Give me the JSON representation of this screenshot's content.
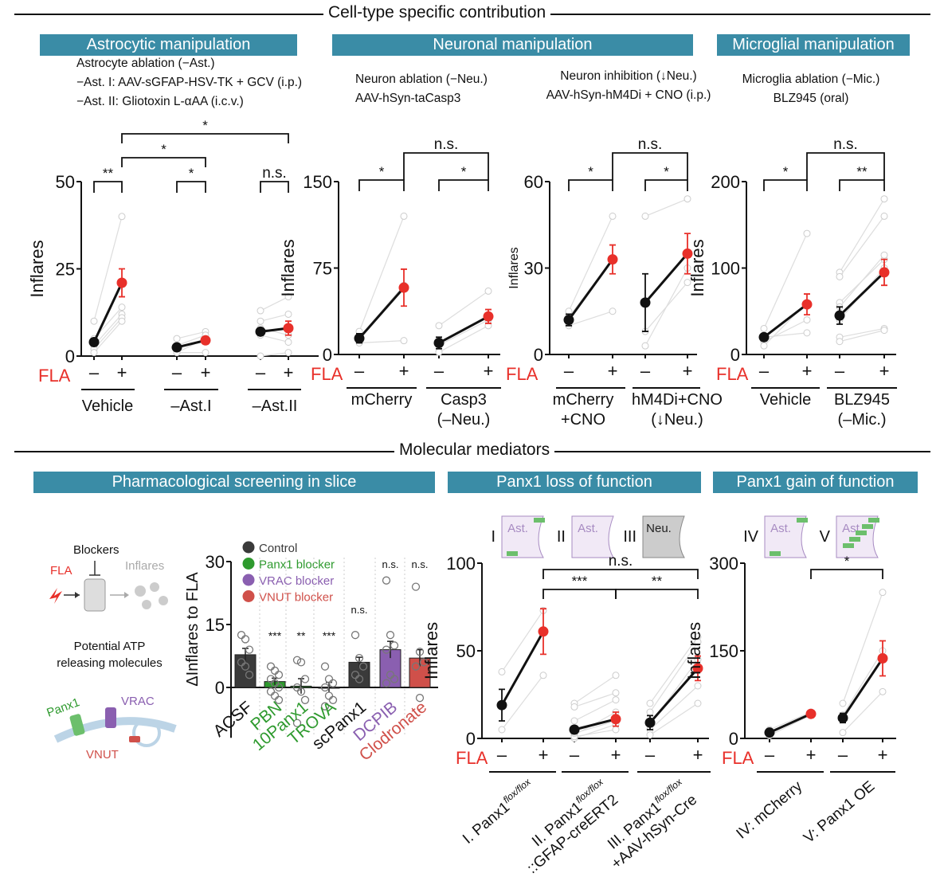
{
  "sections": {
    "top": "Cell-type specific contribution",
    "bottom": "Molecular mediators"
  },
  "boxes": {
    "astro": "Astrocytic manipulation",
    "neuro": "Neuronal manipulation",
    "micro": "Microglial manipulation",
    "pharm": "Pharmacological screening in slice",
    "lof": "Panx1 loss of function",
    "gof": "Panx1 gain of function"
  },
  "descriptions": {
    "astro": [
      "Astrocyte ablation (−Ast.)",
      "−Ast. I: AAV-sGFAP-HSV-TK + GCV (i.p.)",
      "−Ast. II: Gliotoxin L-αAA (i.c.v.)"
    ],
    "neu_abl": [
      "Neuron ablation (−Neu.)",
      "AAV-hSyn-taCasp3"
    ],
    "neu_inh": [
      "Neuron inhibition (↓Neu.)",
      "AAV-hSyn-hM4Di + CNO (i.p.)"
    ],
    "mic_abl": [
      "Microglia ablation (−Mic.)",
      "BLZ945 (oral)"
    ]
  },
  "fla_label": "FLA",
  "minus": "–",
  "plus": "+",
  "schematic": {
    "blockers": "Blockers",
    "fla": "FLA",
    "inflares": "Inflares",
    "potential": [
      "Potential ATP",
      "releasing molecules"
    ],
    "panx1": "Panx1",
    "vrac": "VRAC",
    "vnut": "VNUT",
    "insets": [
      {
        "num": "I",
        "cell": "Ast."
      },
      {
        "num": "II",
        "cell": "Ast."
      },
      {
        "num": "III",
        "cell": "Neu."
      },
      {
        "num": "IV",
        "cell": "Ast."
      },
      {
        "num": "V",
        "cell": "Ast."
      }
    ]
  },
  "colors": {
    "accent": "#3a8ca6",
    "fla": "#e8302a",
    "control": "#3a3a3a",
    "panx1": "#2e9a2e",
    "vrac": "#8a5fb0",
    "vnut": "#d0504a"
  },
  "chart_data": [
    {
      "type": "line",
      "id": "p1",
      "ylabel": "Inflares",
      "ylim": [
        0,
        50
      ],
      "ticks": [
        "0",
        "25",
        "50"
      ],
      "groups": [
        {
          "label": "Vehicle",
          "minus": 4,
          "plus": 21,
          "err": [
            1,
            4
          ],
          "indiv": [
            [
              10,
              40
            ],
            [
              5,
              14
            ],
            [
              3,
              12
            ],
            [
              2,
              11
            ],
            [
              1,
              10
            ]
          ]
        },
        {
          "label": "–Ast.I",
          "minus": 2.5,
          "plus": 4.5,
          "err": [
            0.5,
            1
          ],
          "indiv": [
            [
              5,
              7
            ],
            [
              3,
              6
            ],
            [
              1,
              5
            ],
            [
              1,
              1
            ]
          ]
        },
        {
          "label": "–Ast.II",
          "minus": 7,
          "plus": 8,
          "err": [
            1,
            2
          ],
          "indiv": [
            [
              13,
              17
            ],
            [
              10,
              12
            ],
            [
              6,
              4
            ],
            [
              0,
              1
            ],
            [
              8,
              6
            ]
          ]
        }
      ],
      "within": [
        "**",
        "*",
        "n.s."
      ],
      "between": [
        "*",
        "*"
      ]
    },
    {
      "type": "line",
      "id": "p2",
      "ylabel": "Inflares",
      "ylim": [
        0,
        150
      ],
      "ticks": [
        "0",
        "75",
        "150"
      ],
      "groups": [
        {
          "label": "mCherry",
          "minus": 14,
          "plus": 58,
          "err": [
            4,
            16
          ],
          "indiv": [
            [
              20,
              120
            ],
            [
              10,
              12
            ],
            [
              15,
              60
            ]
          ]
        },
        {
          "label": "Casp3\n(–Neu.)",
          "minus": 10,
          "plus": 33,
          "err": [
            5,
            6
          ],
          "indiv": [
            [
              25,
              55
            ],
            [
              2,
              25
            ],
            [
              8,
              30
            ]
          ]
        }
      ],
      "within": [
        "*",
        "*"
      ],
      "between": [
        "n.s."
      ]
    },
    {
      "type": "line",
      "id": "p3",
      "ylabel": "Inflares",
      "ylim": [
        0,
        60
      ],
      "ticks": [
        "0",
        "30",
        "60"
      ],
      "groups": [
        {
          "label": "mCherry\n+CNO",
          "minus": 12,
          "plus": 33,
          "err": [
            2,
            5
          ],
          "indiv": [
            [
              15,
              48
            ],
            [
              10,
              15
            ],
            [
              13,
              33
            ]
          ]
        },
        {
          "label": "hM4Di+CNO\n(↓Neu.)",
          "minus": 18,
          "plus": 35,
          "err": [
            10,
            7
          ],
          "indiv": [
            [
              48,
              54
            ],
            [
              3,
              30
            ],
            [
              8,
              25
            ]
          ]
        }
      ],
      "within": [
        "*",
        "*"
      ],
      "between": [
        "n.s."
      ]
    },
    {
      "type": "line",
      "id": "p4",
      "ylabel": "Inflares",
      "ylim": [
        0,
        200
      ],
      "ticks": [
        "0",
        "100",
        "200"
      ],
      "groups": [
        {
          "label": "Vehicle",
          "minus": 20,
          "plus": 58,
          "err": [
            4,
            12
          ],
          "indiv": [
            [
              30,
              140
            ],
            [
              15,
              40
            ],
            [
              20,
              25
            ],
            [
              10,
              60
            ]
          ]
        },
        {
          "label": "BLZ945\n(–Mic.)",
          "minus": 45,
          "plus": 95,
          "err": [
            10,
            15
          ],
          "indiv": [
            [
              95,
              180
            ],
            [
              90,
              160
            ],
            [
              60,
              110
            ],
            [
              40,
              100
            ],
            [
              20,
              30
            ],
            [
              15,
              28
            ],
            [
              55,
              115
            ]
          ]
        }
      ],
      "within": [
        "*",
        "**"
      ],
      "between": [
        "n.s."
      ]
    },
    {
      "type": "bar",
      "id": "bar",
      "ylabel": "ΔInflares to FLA",
      "ylim": [
        -12,
        30
      ],
      "ticks": [
        "0",
        "15",
        "30"
      ],
      "legend": [
        {
          "label": "Control",
          "color": "#3a3a3a"
        },
        {
          "label": "Panx1 blocker",
          "color": "#2e9a2e"
        },
        {
          "label": "VRAC blocker",
          "color": "#8a5fb0"
        },
        {
          "label": "VNUT blocker",
          "color": "#d0504a"
        }
      ],
      "bars": [
        {
          "label": "ACSF",
          "value": 7.8,
          "err": 1.5,
          "cls": "Control",
          "sig": "",
          "pts": [
            12.5,
            11.5,
            9,
            6,
            5,
            3
          ]
        },
        {
          "label": "PBN",
          "value": 1.4,
          "err": 0.8,
          "cls": "Panx1 blocker",
          "sig": "***",
          "pts": [
            5,
            4,
            3,
            2,
            1,
            0,
            -1,
            -2,
            -3
          ]
        },
        {
          "label": "10Panx1",
          "value": 0.3,
          "err": 1.8,
          "cls": "Panx1 blocker",
          "sig": "**",
          "pts": [
            6.5,
            6,
            2,
            0,
            -1,
            -3,
            -8.5
          ]
        },
        {
          "label": "TROVA",
          "value": 0,
          "err": 1.2,
          "cls": "Panx1 blocker",
          "sig": "***",
          "pts": [
            5,
            2,
            1,
            0,
            -2,
            -3,
            -4.5
          ]
        },
        {
          "label": "scPanx1",
          "value": 6,
          "err": 1.2,
          "cls": "Control",
          "sig": "n.s.",
          "pts": [
            12.5,
            7,
            5,
            3,
            2
          ]
        },
        {
          "label": "DCPIB",
          "value": 9,
          "err": 2,
          "cls": "VRAC blocker",
          "sig": "n.s.",
          "pts": [
            25.5,
            12.5,
            10,
            9,
            3,
            2,
            1
          ]
        },
        {
          "label": "Clodronate",
          "value": 7,
          "err": 2,
          "cls": "VNUT blocker",
          "sig": "n.s.",
          "pts": [
            24,
            8.5,
            6,
            5,
            -2.5
          ]
        }
      ]
    },
    {
      "type": "line",
      "id": "p5",
      "ylabel": "Inflares",
      "ylim": [
        0,
        100
      ],
      "ticks": [
        "0",
        "50",
        "100"
      ],
      "groups": [
        {
          "label": "I. Panx1",
          "sup": "flox/flox",
          "label2": "",
          "minus": 19,
          "plus": 61,
          "err": [
            9,
            13
          ],
          "indiv": [
            [
              38,
              73
            ],
            [
              5,
              36
            ]
          ]
        },
        {
          "label": "II. Panx1",
          "sup": "flox/flox",
          "label2": "::GFAP-creERT2",
          "minus": 5,
          "plus": 11,
          "err": [
            2,
            4
          ],
          "indiv": [
            [
              20,
              36
            ],
            [
              18,
              26
            ],
            [
              10,
              22
            ],
            [
              2,
              15
            ],
            [
              0,
              8
            ],
            [
              1,
              5
            ],
            [
              3,
              10
            ]
          ]
        },
        {
          "label": "III. Panx1",
          "sup": "flox/flox",
          "label2": "+AAV-hSyn-Cre",
          "minus": 9,
          "plus": 40,
          "err": [
            4,
            7
          ],
          "indiv": [
            [
              20,
              58
            ],
            [
              15,
              55
            ],
            [
              8,
              45
            ],
            [
              5,
              30
            ],
            [
              2,
              20
            ]
          ]
        }
      ],
      "within": [],
      "between": [
        "n.s.",
        "***",
        "**"
      ]
    },
    {
      "type": "line",
      "id": "p6",
      "ylabel": "Inflares",
      "ylim": [
        0,
        300
      ],
      "ticks": [
        "0",
        "150",
        "300"
      ],
      "groups": [
        {
          "label": "IV: mCherry",
          "minus": 10,
          "plus": 42,
          "err": [
            3,
            5
          ],
          "indiv": [
            [
              15,
              45
            ],
            [
              5,
              40
            ]
          ]
        },
        {
          "label": "V: Panx1 OE",
          "minus": 35,
          "plus": 137,
          "err": [
            8,
            30
          ],
          "indiv": [
            [
              60,
              250
            ],
            [
              40,
              150
            ],
            [
              10,
              80
            ]
          ]
        }
      ],
      "within": [],
      "between": [
        "*"
      ]
    }
  ]
}
